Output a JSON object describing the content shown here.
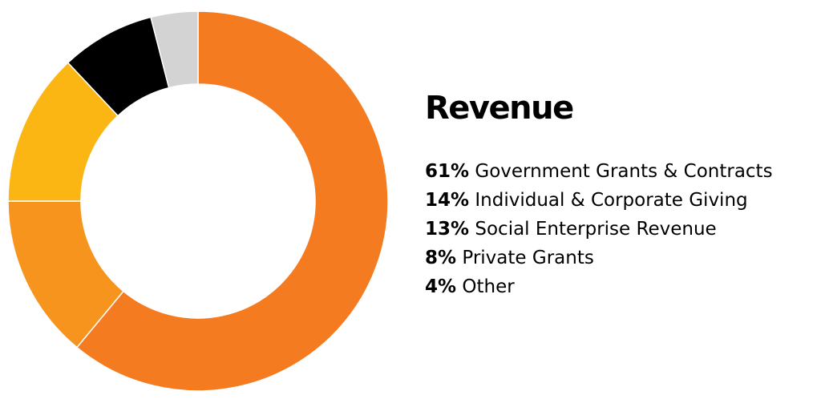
{
  "chart_data": {
    "type": "pie",
    "variant": "donut",
    "title": "Revenue",
    "slices": [
      {
        "pct_label": "61%",
        "label": "Government Grants & Contracts",
        "value": 61,
        "color": "#f47b20"
      },
      {
        "pct_label": "14%",
        "label": "Individual & Corporate Giving",
        "value": 14,
        "color": "#f7941d"
      },
      {
        "pct_label": "13%",
        "label": "Social Enterprise Revenue",
        "value": 13,
        "color": "#fbb614"
      },
      {
        "pct_label": "8%",
        "label": "Private Grants",
        "value": 8,
        "color": "#000000"
      },
      {
        "pct_label": "4%",
        "label": "Other",
        "value": 4,
        "color": "#d3d3d3"
      }
    ],
    "start": "12 o'clock, clockwise",
    "legend_position": "right"
  }
}
